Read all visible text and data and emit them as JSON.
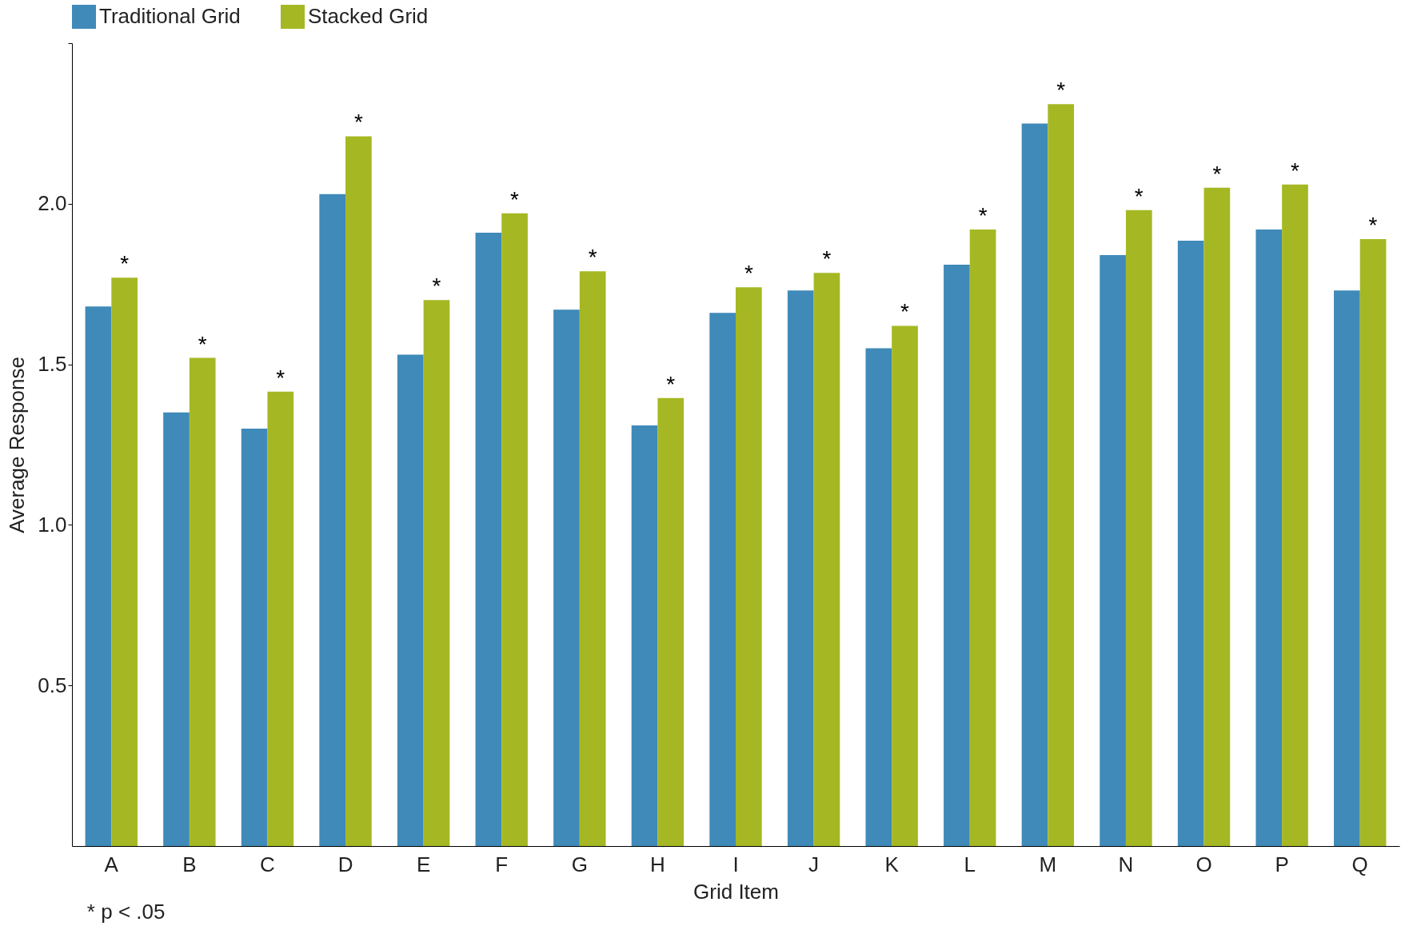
{
  "chart_data": {
    "type": "bar",
    "xlabel": "Grid Item",
    "ylabel": "Average Response",
    "categories": [
      "A",
      "B",
      "C",
      "D",
      "E",
      "F",
      "G",
      "H",
      "I",
      "J",
      "K",
      "L",
      "M",
      "N",
      "O",
      "P",
      "Q"
    ],
    "series": [
      {
        "name": "Traditional Grid",
        "color": "#3f8ab8",
        "values": [
          1.68,
          1.35,
          1.3,
          2.03,
          1.53,
          1.91,
          1.67,
          1.31,
          1.66,
          1.73,
          1.55,
          1.81,
          2.25,
          1.84,
          1.885,
          1.92,
          1.73
        ]
      },
      {
        "name": "Stacked Grid",
        "color": "#a5b823",
        "values": [
          1.77,
          1.52,
          1.415,
          2.21,
          1.7,
          1.97,
          1.79,
          1.395,
          1.74,
          1.785,
          1.62,
          1.92,
          2.31,
          1.98,
          2.05,
          2.06,
          1.89
        ],
        "value_labels": [
          "*",
          "*",
          "*",
          "*",
          "*",
          "*",
          "*",
          "*",
          "*",
          "*",
          "*",
          "*",
          "*",
          "*",
          "*",
          "*",
          "*"
        ]
      }
    ],
    "ylim": [
      0,
      2.5
    ],
    "yticks": [
      {
        "value": 0.5,
        "label": "0.5"
      },
      {
        "value": 1,
        "label": "1.0"
      },
      {
        "value": 1.5,
        "label": "1.5"
      },
      {
        "value": 2,
        "label": "2.0"
      },
      {
        "value": 2.5,
        "label": null
      }
    ],
    "grid": false,
    "legend": "top",
    "annotations": [
      "* p < .05"
    ]
  }
}
